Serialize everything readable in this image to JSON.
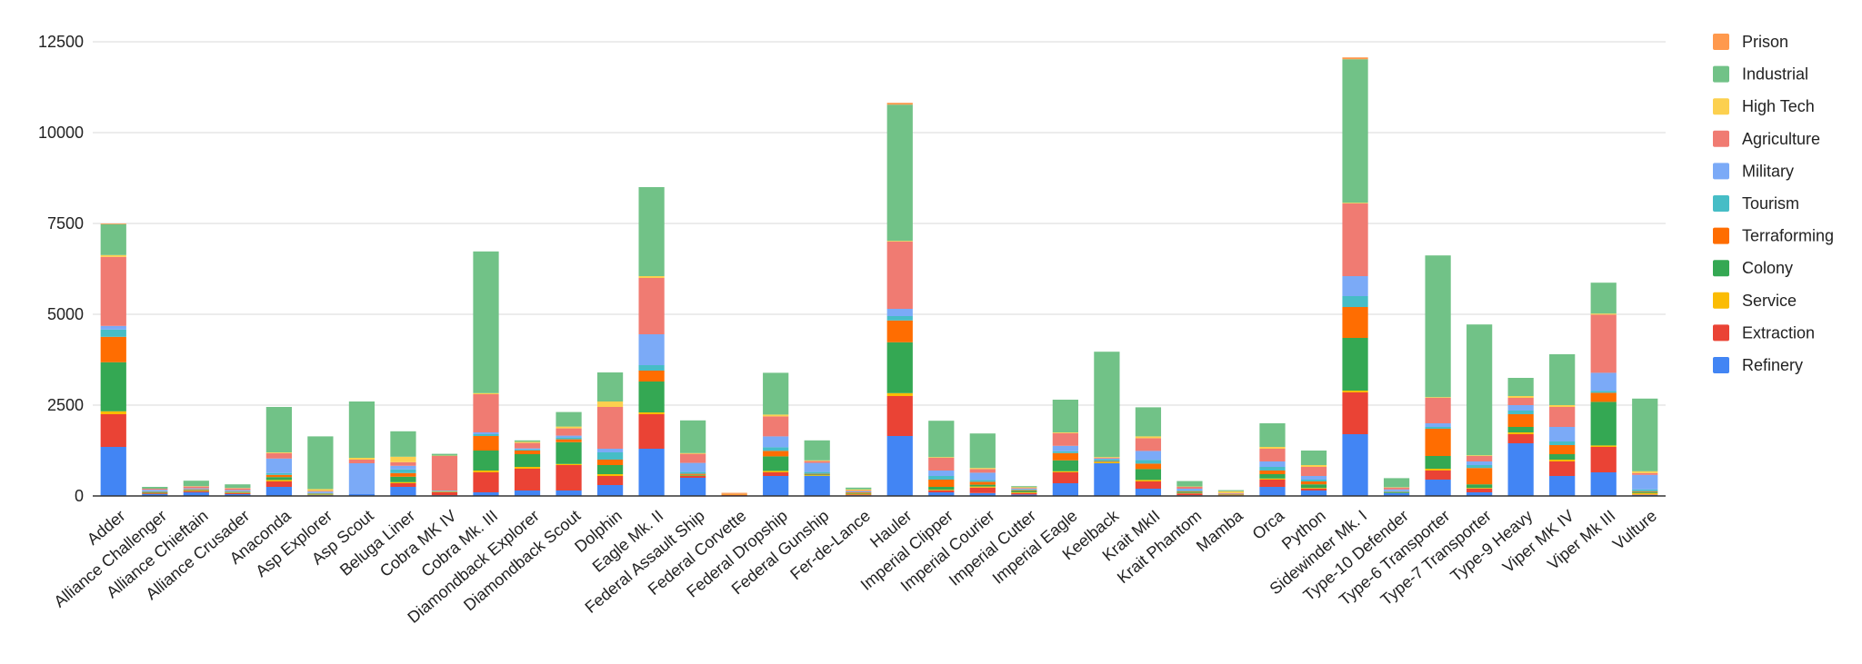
{
  "chart_data": {
    "type": "bar",
    "stacked": true,
    "title": "",
    "xlabel": "",
    "ylabel": "",
    "ylim": [
      0,
      12500
    ],
    "yticks": [
      0,
      2500,
      5000,
      7500,
      10000,
      12500
    ],
    "grid": true,
    "legend_position": "right",
    "categories": [
      "Adder",
      "Alliance Challenger",
      "Alliance Chieftain",
      "Alliance Crusader",
      "Anaconda",
      "Asp Explorer",
      "Asp Scout",
      "Beluga Liner",
      "Cobra MK IV",
      "Cobra Mk. III",
      "Diamondback Explorer",
      "Diamondback Scout",
      "Dolphin",
      "Eagle Mk. II",
      "Federal Assault Ship",
      "Federal Corvette",
      "Federal Dropship",
      "Federal Gunship",
      "Fer-de-Lance",
      "Hauler",
      "Imperial Clipper",
      "Imperial Courier",
      "Imperial Cutter",
      "Imperial Eagle",
      "Keelback",
      "Krait MkII",
      "Krait Phantom",
      "Mamba",
      "Orca",
      "Python",
      "Sidewinder Mk. I",
      "Type-10 Defender",
      "Type-6 Transporter",
      "Type-7 Transporter",
      "Type-9 Heavy",
      "Viper MK IV",
      "Viper Mk III",
      "Vulture"
    ],
    "series": [
      {
        "name": "Refinery",
        "color": "#4285f4",
        "values": [
          1350,
          50,
          100,
          50,
          250,
          20,
          50,
          250,
          20,
          100,
          150,
          150,
          300,
          1300,
          500,
          10,
          550,
          550,
          20,
          1650,
          100,
          80,
          40,
          350,
          900,
          200,
          20,
          10,
          250,
          150,
          1700,
          80,
          450,
          100,
          1450,
          550,
          650,
          30
        ]
      },
      {
        "name": "Extraction",
        "color": "#ea4335",
        "values": [
          900,
          20,
          30,
          30,
          150,
          10,
          0,
          100,
          80,
          550,
          600,
          700,
          250,
          950,
          50,
          20,
          100,
          0,
          20,
          1100,
          50,
          150,
          40,
          300,
          0,
          200,
          50,
          10,
          200,
          50,
          1150,
          0,
          250,
          100,
          250,
          400,
          700,
          10
        ]
      },
      {
        "name": "Service",
        "color": "#fbbc04",
        "values": [
          80,
          0,
          10,
          10,
          40,
          10,
          0,
          30,
          10,
          50,
          50,
          30,
          50,
          50,
          10,
          10,
          40,
          20,
          20,
          80,
          20,
          30,
          20,
          30,
          30,
          40,
          10,
          10,
          30,
          20,
          50,
          0,
          50,
          20,
          50,
          50,
          40,
          40
        ]
      },
      {
        "name": "Colony",
        "color": "#34a853",
        "values": [
          1350,
          20,
          20,
          20,
          80,
          20,
          0,
          150,
          10,
          550,
          350,
          600,
          250,
          850,
          20,
          0,
          400,
          20,
          20,
          1400,
          80,
          50,
          40,
          300,
          10,
          300,
          30,
          10,
          120,
          100,
          1450,
          20,
          350,
          100,
          150,
          150,
          1200,
          30
        ]
      },
      {
        "name": "Terraforming",
        "color": "#ff6d01",
        "values": [
          700,
          20,
          20,
          10,
          60,
          10,
          0,
          100,
          10,
          400,
          100,
          80,
          150,
          300,
          30,
          20,
          150,
          20,
          20,
          600,
          200,
          80,
          20,
          200,
          20,
          150,
          20,
          10,
          100,
          80,
          850,
          10,
          750,
          450,
          350,
          250,
          250,
          20
        ]
      },
      {
        "name": "Tourism",
        "color": "#46bdc6",
        "values": [
          200,
          20,
          10,
          10,
          50,
          10,
          0,
          100,
          10,
          50,
          30,
          50,
          200,
          150,
          50,
          0,
          100,
          50,
          10,
          120,
          100,
          50,
          20,
          50,
          50,
          100,
          20,
          0,
          100,
          50,
          300,
          20,
          50,
          80,
          100,
          100,
          50,
          50
        ]
      },
      {
        "name": "Military",
        "color": "#7baaf7",
        "values": [
          100,
          40,
          20,
          30,
          400,
          40,
          850,
          100,
          10,
          50,
          30,
          50,
          100,
          850,
          250,
          0,
          300,
          250,
          20,
          200,
          150,
          200,
          20,
          150,
          20,
          250,
          50,
          10,
          150,
          100,
          550,
          50,
          100,
          100,
          150,
          400,
          500,
          400
        ]
      },
      {
        "name": "Agriculture",
        "color": "#f07b72",
        "values": [
          1900,
          30,
          50,
          50,
          150,
          20,
          100,
          100,
          950,
          1050,
          150,
          200,
          1150,
          1550,
          250,
          10,
          550,
          50,
          20,
          1850,
          350,
          100,
          20,
          350,
          20,
          350,
          50,
          20,
          350,
          250,
          2000,
          50,
          700,
          150,
          200,
          550,
          1600,
          50
        ]
      },
      {
        "name": "High Tech",
        "color": "#fcd04f",
        "values": [
          50,
          0,
          10,
          10,
          20,
          50,
          50,
          150,
          10,
          30,
          30,
          50,
          150,
          50,
          20,
          10,
          50,
          20,
          30,
          20,
          20,
          30,
          20,
          20,
          20,
          50,
          10,
          50,
          50,
          50,
          20,
          10,
          20,
          20,
          50,
          50,
          30,
          50
        ]
      },
      {
        "name": "Industrial",
        "color": "#71c287",
        "values": [
          850,
          50,
          150,
          100,
          1250,
          1450,
          1550,
          700,
          50,
          3900,
          40,
          400,
          800,
          2450,
          900,
          0,
          1150,
          550,
          50,
          3750,
          1000,
          950,
          30,
          900,
          2900,
          800,
          150,
          30,
          650,
          400,
          3950,
          250,
          3900,
          3600,
          500,
          1400,
          850,
          2000
        ]
      },
      {
        "name": "Prison",
        "color": "#ff994d",
        "values": [
          20,
          0,
          0,
          0,
          0,
          0,
          0,
          0,
          0,
          0,
          0,
          0,
          0,
          0,
          0,
          10,
          0,
          0,
          0,
          50,
          0,
          0,
          0,
          0,
          0,
          0,
          0,
          0,
          0,
          0,
          50,
          0,
          0,
          0,
          0,
          0,
          0,
          0
        ]
      }
    ]
  }
}
